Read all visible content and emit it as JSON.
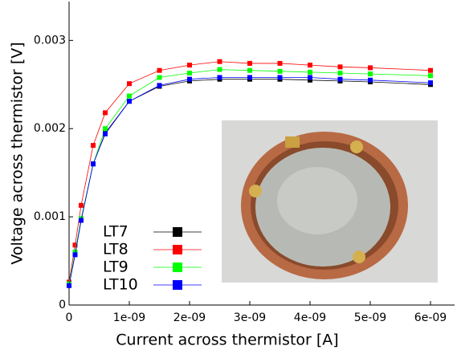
{
  "chart_data": {
    "type": "line",
    "x_label": "Current across thermistor [A]",
    "y_label": "Voltage across thermistor [V]",
    "x": [
      0,
      1e-10,
      2e-10,
      4e-10,
      6e-10,
      1e-09,
      1.5e-09,
      2e-09,
      2.5e-09,
      3e-09,
      3.5e-09,
      4e-09,
      4.5e-09,
      5e-09,
      6e-09
    ],
    "series": [
      {
        "name": "LT7",
        "color": "#000000",
        "values": [
          0.00023,
          0.00058,
          0.00096,
          0.0016,
          0.00195,
          0.00231,
          0.00248,
          0.00254,
          0.00256,
          0.00256,
          0.00256,
          0.00255,
          0.00254,
          0.00253,
          0.0025
        ]
      },
      {
        "name": "LT8",
        "color": "#ff0000",
        "values": [
          0.00026,
          0.00068,
          0.00113,
          0.00181,
          0.00218,
          0.00251,
          0.00266,
          0.00272,
          0.00276,
          0.00274,
          0.00274,
          0.00272,
          0.0027,
          0.00269,
          0.00266
        ]
      },
      {
        "name": "LT9",
        "color": "#00ff00",
        "values": [
          0.00024,
          0.0006,
          0.00098,
          0.0016,
          0.002,
          0.00237,
          0.00258,
          0.00263,
          0.00267,
          0.00266,
          0.00265,
          0.00264,
          0.00263,
          0.00262,
          0.0026
        ]
      },
      {
        "name": "LT10",
        "color": "#0000ff",
        "values": [
          0.00022,
          0.00057,
          0.00096,
          0.0016,
          0.00194,
          0.00231,
          0.00249,
          0.00256,
          0.00258,
          0.00258,
          0.00258,
          0.00258,
          0.00256,
          0.00255,
          0.00252
        ]
      }
    ],
    "xlim": [
      0,
      6.4e-09
    ],
    "ylim": [
      0,
      0.00344
    ],
    "xticks": [
      0,
      {
        "value": 1e-09,
        "label": "1e-09"
      },
      {
        "value": 2e-09,
        "label": "2e-09"
      },
      {
        "value": 3e-09,
        "label": "3e-09"
      },
      {
        "value": 4e-09,
        "label": "4e-09"
      },
      {
        "value": 5e-09,
        "label": "5e-09"
      },
      {
        "value": 6e-09,
        "label": "6e-09"
      }
    ],
    "yticks": [
      0,
      0.001,
      0.002,
      0.003
    ],
    "grid": false,
    "legend": "lower left"
  }
}
